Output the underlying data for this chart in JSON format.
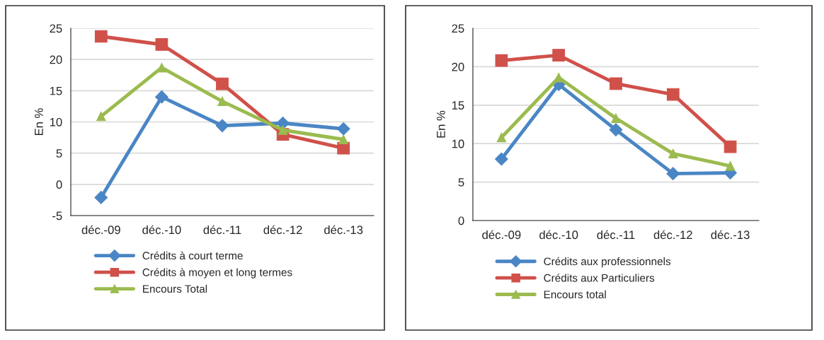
{
  "chart_data": [
    {
      "type": "line",
      "ylabel": "En %",
      "categories": [
        "déc.-09",
        "déc.-10",
        "déc.-11",
        "déc.-12",
        "déc.-13"
      ],
      "ylim": [
        -5,
        25
      ],
      "yticks": [
        -5,
        0,
        5,
        10,
        15,
        20,
        25
      ],
      "grid": "y",
      "legend": "bottom",
      "series": [
        {
          "name": "Crédits à court terme",
          "color": "#4a86c5",
          "marker": "diamond",
          "values": [
            -2.1,
            14.0,
            9.4,
            9.8,
            8.9
          ]
        },
        {
          "name": "Crédits à moyen et long termes",
          "color": "#d0504a",
          "marker": "square",
          "values": [
            23.7,
            22.4,
            16.1,
            8.0,
            5.8
          ]
        },
        {
          "name": "Encours Total",
          "color": "#9bbb4f",
          "marker": "triangle",
          "values": [
            10.9,
            18.7,
            13.3,
            8.7,
            7.2
          ]
        }
      ]
    },
    {
      "type": "line",
      "ylabel": "En %",
      "categories": [
        "déc.-09",
        "déc.-10",
        "déc.-11",
        "déc.-12",
        "déc.-13"
      ],
      "ylim": [
        0,
        25
      ],
      "yticks": [
        0,
        5,
        10,
        15,
        20,
        25
      ],
      "grid": "y",
      "legend": "bottom",
      "series": [
        {
          "name": "Crédits aux professionnels",
          "color": "#4a86c5",
          "marker": "diamond",
          "values": [
            8.0,
            17.7,
            11.8,
            6.1,
            6.2
          ]
        },
        {
          "name": "Crédits aux Particuliers",
          "color": "#d0504a",
          "marker": "square",
          "values": [
            20.8,
            21.5,
            17.8,
            16.4,
            9.6
          ]
        },
        {
          "name": "Encours total",
          "color": "#9bbb4f",
          "marker": "triangle",
          "values": [
            10.8,
            18.6,
            13.3,
            8.7,
            7.1
          ]
        }
      ]
    }
  ]
}
